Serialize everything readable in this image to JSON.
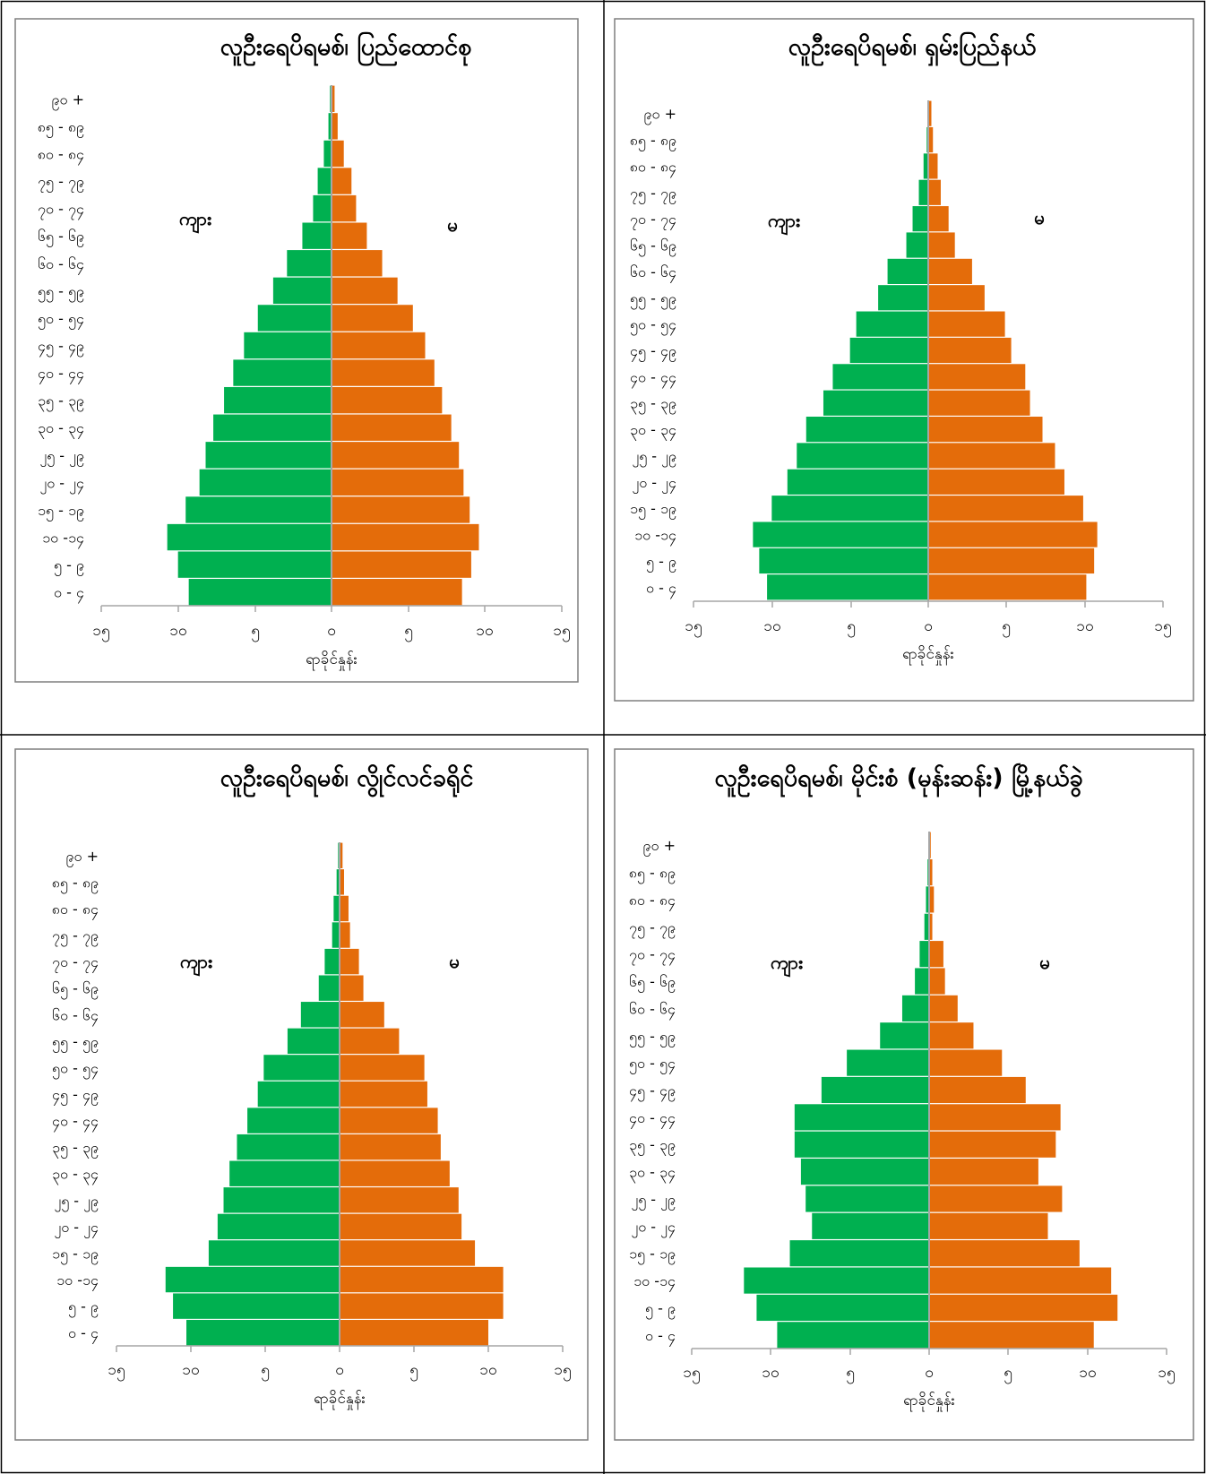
{
  "colors": {
    "male": "#00b050",
    "female": "#e46c0a",
    "axis": "#a6a6a6",
    "frame": "#000000"
  },
  "chart_data": [
    {
      "type": "bar",
      "orientation": "horizontal",
      "title": "လူဦးရေပိရမစ်၊ ပြည်ထောင်စု",
      "xlabel": "ရာခိုင်နှုန်း",
      "male_label": "ကျား",
      "female_label": "မ",
      "xlim": [
        -15,
        15
      ],
      "xticks": [
        "၁၅",
        "၁၀",
        "၅",
        "၀",
        "၅",
        "၁၀",
        "၁၅"
      ],
      "categories": [
        "၀ - ၄",
        "၅ - ၉",
        "၁၀ -၁၄",
        "၁၅ - ၁၉",
        "၂၀ - ၂၄",
        "၂၅ - ၂၉",
        "၃၀ - ၃၄",
        "၃၅ - ၃၉",
        "၄၀ - ၄၄",
        "၄၅ - ၄၉",
        "၅၀ - ၅၄",
        "၅၅ - ၅၉",
        "၆၀ - ၆၄",
        "၆၅ - ၆၉",
        "၇၀ - ၇၄",
        "၇၅ - ၇၉",
        "၈၀ - ၈၄",
        "၈၅ - ၈၉",
        "၉၀ +"
      ],
      "series": [
        {
          "name": "ကျား",
          "values": [
            9.3,
            10.0,
            10.7,
            9.5,
            8.6,
            8.2,
            7.7,
            7.0,
            6.4,
            5.7,
            4.8,
            3.8,
            2.9,
            1.9,
            1.2,
            0.9,
            0.5,
            0.2,
            0.1
          ]
        },
        {
          "name": "မ",
          "values": [
            8.5,
            9.1,
            9.6,
            9.0,
            8.6,
            8.3,
            7.8,
            7.2,
            6.7,
            6.1,
            5.3,
            4.3,
            3.3,
            2.3,
            1.6,
            1.3,
            0.8,
            0.4,
            0.2
          ]
        }
      ]
    },
    {
      "type": "bar",
      "orientation": "horizontal",
      "title": "လူဦးရေပိရမစ်၊ ရှမ်းပြည်နယ်",
      "xlabel": "ရာခိုင်နှုန်း",
      "male_label": "ကျား",
      "female_label": "မ",
      "xlim": [
        -15,
        15
      ],
      "xticks": [
        "၁၅",
        "၁၀",
        "၅",
        "၀",
        "၅",
        "၁၀",
        "၁၅"
      ],
      "categories": [
        "၀ - ၄",
        "၅ - ၉",
        "၁၀ -၁၄",
        "၁၅ - ၁၉",
        "၂၀ - ၂၄",
        "၂၅ - ၂၉",
        "၃၀ - ၃၄",
        "၃၅ - ၃၉",
        "၄၀ - ၄၄",
        "၄၅ - ၄၉",
        "၅၀ - ၅၄",
        "၅၅ - ၅၉",
        "၆၀ - ၆၄",
        "၆၅ - ၆၉",
        "၇၀ - ၇၄",
        "၇၅ - ၇၉",
        "၈၀ - ၈၄",
        "၈၅ - ၈၉",
        "၉၀ +"
      ],
      "series": [
        {
          "name": "ကျား",
          "values": [
            10.3,
            10.8,
            11.2,
            10.0,
            9.0,
            8.4,
            7.8,
            6.7,
            6.1,
            5.0,
            4.6,
            3.2,
            2.6,
            1.4,
            1.0,
            0.6,
            0.3,
            0.1,
            0.05
          ]
        },
        {
          "name": "မ",
          "values": [
            10.1,
            10.6,
            10.8,
            9.9,
            8.7,
            8.1,
            7.3,
            6.5,
            6.2,
            5.3,
            4.9,
            3.6,
            2.8,
            1.7,
            1.3,
            0.8,
            0.6,
            0.3,
            0.2
          ]
        }
      ]
    },
    {
      "type": "bar",
      "orientation": "horizontal",
      "title": "လူဦးရေပိရမစ်၊ လွိုင်လင်ခရိုင်",
      "xlabel": "ရာခိုင်နှုန်း",
      "male_label": "ကျား",
      "female_label": "မ",
      "xlim": [
        -15,
        15
      ],
      "xticks": [
        "၁၅",
        "၁၀",
        "၅",
        "၀",
        "၅",
        "၁၀",
        "၁၅"
      ],
      "categories": [
        "၀ - ၄",
        "၅ - ၉",
        "၁၀ -၁၄",
        "၁၅ - ၁၉",
        "၂၀ - ၂၄",
        "၂၅ - ၂၉",
        "၃၀ - ၃၄",
        "၃၅ - ၃၉",
        "၄၀ - ၄၄",
        "၄၅ - ၄၉",
        "၅၀ - ၅၄",
        "၅၅ - ၅၉",
        "၆၀ - ၆၄",
        "၆၅ - ၆၉",
        "၇၀ - ၇၄",
        "၇၅ - ၇၉",
        "၈၀ - ၈၄",
        "၈၅ - ၈၉",
        "၉၀ +"
      ],
      "series": [
        {
          "name": "ကျား",
          "values": [
            10.3,
            11.2,
            11.7,
            8.8,
            8.2,
            7.8,
            7.4,
            6.9,
            6.2,
            5.5,
            5.1,
            3.5,
            2.6,
            1.4,
            1.0,
            0.5,
            0.4,
            0.2,
            0.1
          ]
        },
        {
          "name": "မ",
          "values": [
            10.0,
            11.0,
            11.0,
            9.1,
            8.2,
            8.0,
            7.4,
            6.8,
            6.6,
            5.9,
            5.7,
            4.0,
            3.0,
            1.6,
            1.3,
            0.7,
            0.6,
            0.3,
            0.2
          ]
        }
      ]
    },
    {
      "type": "bar",
      "orientation": "horizontal",
      "title": "လူဦးရေပိရမစ်၊  မိုင်းစံ (မုန်းဆန်း) မြို့နယ်ခွဲ",
      "xlabel": "ရာခိုင်နှုန်း",
      "male_label": "ကျား",
      "female_label": "မ",
      "xlim": [
        -15,
        15
      ],
      "xticks": [
        "၁၅",
        "၁၀",
        "၅",
        "၀",
        "၅",
        "၁၀",
        "၁၅"
      ],
      "categories": [
        "၀ - ၄",
        "၅ - ၉",
        "၁၀ -၁၄",
        "၁၅ - ၁၉",
        "၂၀ - ၂၄",
        "၂၅ - ၂၉",
        "၃၀ - ၃၄",
        "၃၅ - ၃၉",
        "၄၀ - ၄၄",
        "၄၅ - ၄၉",
        "၅၀ - ၅၄",
        "၅၅ - ၅၉",
        "၆၀ - ၆၄",
        "၆၅ - ၆၉",
        "၇၀ - ၇၄",
        "၇၅ - ၇၉",
        "၈၀ - ၈၄",
        "၈၅ - ၈၉",
        "၉၀ +"
      ],
      "series": [
        {
          "name": "ကျား",
          "values": [
            9.6,
            10.9,
            11.7,
            8.8,
            7.4,
            7.8,
            8.1,
            8.5,
            8.5,
            6.8,
            5.2,
            3.1,
            1.7,
            0.9,
            0.6,
            0.3,
            0.2,
            0.1,
            0.05
          ]
        },
        {
          "name": "မ",
          "values": [
            10.4,
            11.9,
            11.5,
            9.5,
            7.5,
            8.4,
            6.9,
            8.0,
            8.3,
            6.1,
            4.6,
            2.8,
            1.8,
            1.0,
            0.9,
            0.2,
            0.3,
            0.2,
            0.1
          ]
        }
      ]
    }
  ]
}
